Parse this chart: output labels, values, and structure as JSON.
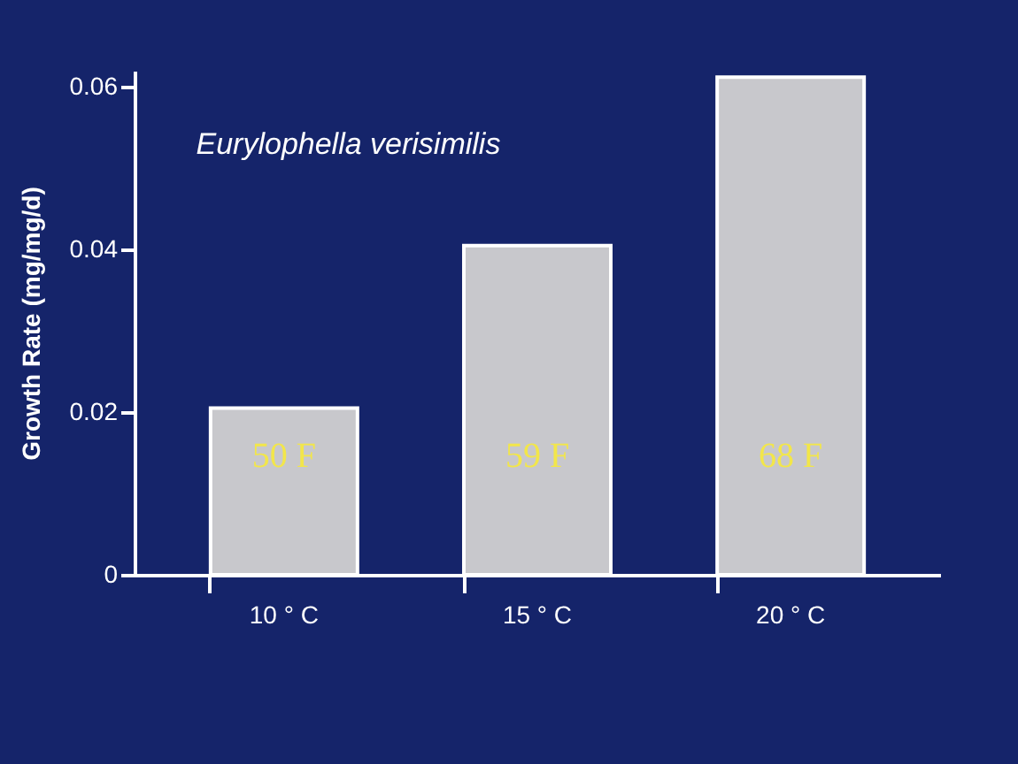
{
  "chart_data": {
    "type": "bar",
    "title": "Eurylophella  verisimilis",
    "ylabel": "Growth  Rate  (mg/mg/d)",
    "categories": [
      "10 ° C",
      "15 ° C",
      "20 ° C"
    ],
    "series": [
      {
        "color": "#c8c8cc",
        "values": [
          0.0205,
          0.0405,
          0.0612
        ]
      }
    ],
    "ylim": [
      0,
      0.062
    ],
    "yticks": [
      {
        "value": 0,
        "label": "0"
      },
      0.02,
      0.04,
      0.06
    ],
    "grid": false,
    "annotations": [
      "50 F",
      "59 F",
      "68 F"
    ]
  }
}
